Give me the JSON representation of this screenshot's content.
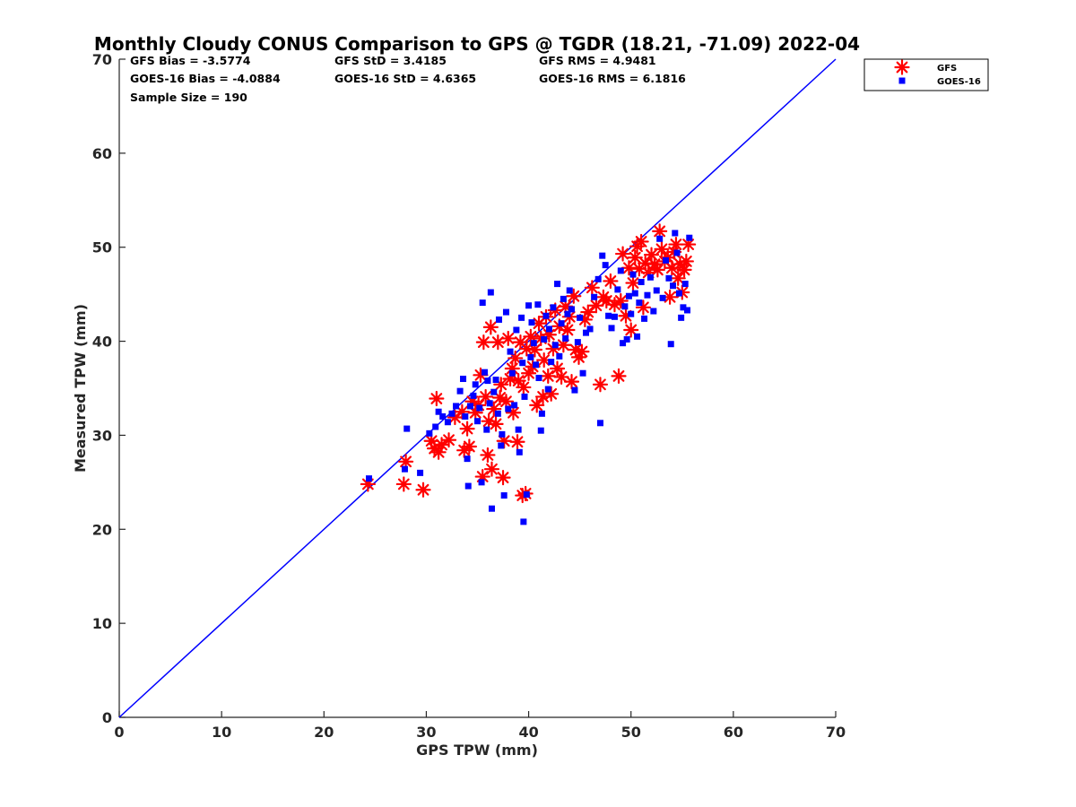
{
  "chart_data": {
    "type": "scatter",
    "title": "Monthly Cloudy CONUS Comparison to GPS @ TGDR (18.21, -71.09) 2022-04",
    "xlabel": "GPS TPW (mm)",
    "ylabel": "Measured TPW (mm)",
    "xlim": [
      0,
      70
    ],
    "ylim": [
      0,
      70
    ],
    "xticks": [
      "0",
      "10",
      "20",
      "30",
      "40",
      "50",
      "60",
      "70"
    ],
    "yticks": [
      "0",
      "10",
      "20",
      "30",
      "40",
      "50",
      "60",
      "70"
    ],
    "grid": false,
    "legend_position": "top-right outside",
    "stats": {
      "gfs_bias": "GFS Bias = -3.5774",
      "goes_bias": "GOES-16 Bias = -4.0884",
      "sample_size": "Sample Size = 190",
      "gfs_std": "GFS StD = 3.4185",
      "goes_std": "GOES-16 StD = 4.6365",
      "gfs_rms": "GFS RMS = 4.9481",
      "goes_rms": "GOES-16 RMS = 6.1816"
    },
    "reference_line": {
      "from": [
        0,
        0
      ],
      "to": [
        70,
        70
      ],
      "color": "#0000ff"
    },
    "series": [
      {
        "name": "GFS",
        "marker": "asterisk",
        "color": "#ff0000",
        "points": [
          [
            24.3,
            24.8
          ],
          [
            27.8,
            24.8
          ],
          [
            28.0,
            27.2
          ],
          [
            29.7,
            24.2
          ],
          [
            30.5,
            29.4
          ],
          [
            30.8,
            28.6
          ],
          [
            31.0,
            33.9
          ],
          [
            31.2,
            28.2
          ],
          [
            31.5,
            29.0
          ],
          [
            32.2,
            29.5
          ],
          [
            32.8,
            31.9
          ],
          [
            33.5,
            32.5
          ],
          [
            33.7,
            28.4
          ],
          [
            34.0,
            30.7
          ],
          [
            34.2,
            28.8
          ],
          [
            34.5,
            33.6
          ],
          [
            34.8,
            32.4
          ],
          [
            35.1,
            33.2
          ],
          [
            35.3,
            36.4
          ],
          [
            35.5,
            25.6
          ],
          [
            35.6,
            39.9
          ],
          [
            35.8,
            34.1
          ],
          [
            36.0,
            27.9
          ],
          [
            36.1,
            31.5
          ],
          [
            36.3,
            41.5
          ],
          [
            36.4,
            26.4
          ],
          [
            36.6,
            32.8
          ],
          [
            36.8,
            31.2
          ],
          [
            37.0,
            39.9
          ],
          [
            37.2,
            34.0
          ],
          [
            37.3,
            35.4
          ],
          [
            37.5,
            25.5
          ],
          [
            37.6,
            29.4
          ],
          [
            37.8,
            33.6
          ],
          [
            38.0,
            40.3
          ],
          [
            38.2,
            36.0
          ],
          [
            38.4,
            37.1
          ],
          [
            38.5,
            32.4
          ],
          [
            38.7,
            38.2
          ],
          [
            38.9,
            29.3
          ],
          [
            39.0,
            35.8
          ],
          [
            39.2,
            39.9
          ],
          [
            39.4,
            23.6
          ],
          [
            39.5,
            35.1
          ],
          [
            39.7,
            23.8
          ],
          [
            39.8,
            39.2
          ],
          [
            40.0,
            36.6
          ],
          [
            40.2,
            40.5
          ],
          [
            40.4,
            37.3
          ],
          [
            40.6,
            39.1
          ],
          [
            40.8,
            33.2
          ],
          [
            41.0,
            41.9
          ],
          [
            41.2,
            40.3
          ],
          [
            41.4,
            34.1
          ],
          [
            41.5,
            38.0
          ],
          [
            41.7,
            42.6
          ],
          [
            41.9,
            36.3
          ],
          [
            42.0,
            40.7
          ],
          [
            42.2,
            34.4
          ],
          [
            42.4,
            39.2
          ],
          [
            42.6,
            43.3
          ],
          [
            42.8,
            37.1
          ],
          [
            43.0,
            41.6
          ],
          [
            43.2,
            36.2
          ],
          [
            43.4,
            39.6
          ],
          [
            43.6,
            43.7
          ],
          [
            43.8,
            41.2
          ],
          [
            44.0,
            42.6
          ],
          [
            44.2,
            35.7
          ],
          [
            44.4,
            44.8
          ],
          [
            44.6,
            39.1
          ],
          [
            44.9,
            38.3
          ],
          [
            45.2,
            38.9
          ],
          [
            45.5,
            42.3
          ],
          [
            45.8,
            43.1
          ],
          [
            46.2,
            45.7
          ],
          [
            46.6,
            43.8
          ],
          [
            47.0,
            35.4
          ],
          [
            47.3,
            44.7
          ],
          [
            47.6,
            44.3
          ],
          [
            48.0,
            46.4
          ],
          [
            48.4,
            43.9
          ],
          [
            48.8,
            36.3
          ],
          [
            49.0,
            44.3
          ],
          [
            49.2,
            49.3
          ],
          [
            49.5,
            42.7
          ],
          [
            49.8,
            47.8
          ],
          [
            50.0,
            41.2
          ],
          [
            50.2,
            46.2
          ],
          [
            50.4,
            48.9
          ],
          [
            50.6,
            50.1
          ],
          [
            50.8,
            47.7
          ],
          [
            51.0,
            50.6
          ],
          [
            51.2,
            43.6
          ],
          [
            51.4,
            48.3
          ],
          [
            51.7,
            47.3
          ],
          [
            52.0,
            49.2
          ],
          [
            52.3,
            48.2
          ],
          [
            52.6,
            47.6
          ],
          [
            52.8,
            51.7
          ],
          [
            53.0,
            49.8
          ],
          [
            53.3,
            48.5
          ],
          [
            53.6,
            48.9
          ],
          [
            53.8,
            44.7
          ],
          [
            54.0,
            47.8
          ],
          [
            54.2,
            49.5
          ],
          [
            54.4,
            50.3
          ],
          [
            54.6,
            46.7
          ],
          [
            54.8,
            48.2
          ],
          [
            55.0,
            45.2
          ],
          [
            55.2,
            47.6
          ],
          [
            55.4,
            48.5
          ],
          [
            55.6,
            50.3
          ]
        ]
      },
      {
        "name": "GOES-16",
        "marker": "square",
        "color": "#0000ff",
        "points": [
          [
            24.4,
            25.4
          ],
          [
            27.9,
            26.4
          ],
          [
            28.1,
            30.7
          ],
          [
            29.4,
            26.0
          ],
          [
            30.3,
            30.2
          ],
          [
            30.9,
            30.9
          ],
          [
            31.2,
            32.5
          ],
          [
            31.6,
            32.0
          ],
          [
            32.1,
            31.4
          ],
          [
            32.5,
            32.3
          ],
          [
            32.9,
            33.1
          ],
          [
            33.3,
            34.7
          ],
          [
            33.6,
            36.0
          ],
          [
            33.8,
            32.0
          ],
          [
            34.0,
            27.5
          ],
          [
            34.1,
            24.6
          ],
          [
            34.3,
            33.1
          ],
          [
            34.6,
            34.2
          ],
          [
            34.8,
            35.4
          ],
          [
            35.0,
            31.5
          ],
          [
            35.2,
            32.9
          ],
          [
            35.4,
            25.0
          ],
          [
            35.5,
            44.1
          ],
          [
            35.7,
            36.7
          ],
          [
            35.9,
            30.6
          ],
          [
            36.0,
            35.8
          ],
          [
            36.2,
            33.4
          ],
          [
            36.3,
            45.2
          ],
          [
            36.4,
            22.2
          ],
          [
            36.6,
            34.6
          ],
          [
            36.8,
            35.9
          ],
          [
            37.0,
            32.3
          ],
          [
            37.1,
            42.3
          ],
          [
            37.3,
            28.9
          ],
          [
            37.4,
            30.1
          ],
          [
            37.6,
            23.6
          ],
          [
            37.8,
            43.1
          ],
          [
            38.0,
            32.8
          ],
          [
            38.2,
            38.9
          ],
          [
            38.4,
            36.6
          ],
          [
            38.6,
            33.2
          ],
          [
            38.8,
            41.2
          ],
          [
            39.0,
            30.6
          ],
          [
            39.1,
            28.2
          ],
          [
            39.3,
            42.5
          ],
          [
            39.4,
            37.7
          ],
          [
            39.5,
            20.8
          ],
          [
            39.6,
            34.1
          ],
          [
            39.8,
            23.7
          ],
          [
            40.0,
            43.8
          ],
          [
            40.2,
            38.3
          ],
          [
            40.3,
            42.0
          ],
          [
            40.5,
            39.8
          ],
          [
            40.7,
            37.5
          ],
          [
            40.9,
            43.9
          ],
          [
            41.0,
            36.1
          ],
          [
            41.2,
            30.5
          ],
          [
            41.3,
            32.3
          ],
          [
            41.5,
            40.2
          ],
          [
            41.7,
            42.7
          ],
          [
            41.9,
            34.9
          ],
          [
            42.0,
            41.3
          ],
          [
            42.2,
            37.8
          ],
          [
            42.4,
            43.6
          ],
          [
            42.6,
            39.6
          ],
          [
            42.8,
            46.1
          ],
          [
            43.0,
            38.4
          ],
          [
            43.2,
            41.9
          ],
          [
            43.4,
            44.5
          ],
          [
            43.6,
            40.3
          ],
          [
            43.8,
            42.9
          ],
          [
            44.0,
            45.4
          ],
          [
            44.2,
            43.4
          ],
          [
            44.5,
            34.8
          ],
          [
            44.8,
            39.9
          ],
          [
            45.0,
            42.5
          ],
          [
            45.3,
            36.6
          ],
          [
            45.6,
            40.9
          ],
          [
            46.0,
            41.3
          ],
          [
            46.4,
            44.7
          ],
          [
            46.8,
            46.6
          ],
          [
            47.0,
            31.3
          ],
          [
            47.2,
            49.1
          ],
          [
            47.5,
            48.1
          ],
          [
            47.8,
            42.7
          ],
          [
            48.1,
            41.4
          ],
          [
            48.4,
            42.6
          ],
          [
            48.7,
            45.5
          ],
          [
            49.0,
            47.5
          ],
          [
            49.2,
            39.8
          ],
          [
            49.4,
            43.7
          ],
          [
            49.6,
            40.2
          ],
          [
            49.8,
            44.8
          ],
          [
            50.0,
            42.9
          ],
          [
            50.2,
            47.1
          ],
          [
            50.4,
            45.1
          ],
          [
            50.6,
            40.5
          ],
          [
            50.8,
            44.1
          ],
          [
            51.0,
            46.3
          ],
          [
            51.3,
            42.4
          ],
          [
            51.6,
            44.9
          ],
          [
            51.9,
            46.8
          ],
          [
            52.2,
            43.2
          ],
          [
            52.5,
            45.4
          ],
          [
            52.8,
            50.9
          ],
          [
            53.1,
            44.6
          ],
          [
            53.4,
            48.6
          ],
          [
            53.7,
            46.7
          ],
          [
            53.9,
            39.7
          ],
          [
            54.1,
            45.9
          ],
          [
            54.3,
            51.5
          ],
          [
            54.5,
            49.4
          ],
          [
            54.7,
            45.1
          ],
          [
            54.9,
            42.5
          ],
          [
            55.1,
            43.6
          ],
          [
            55.3,
            46.1
          ],
          [
            55.5,
            43.3
          ],
          [
            55.7,
            51.0
          ]
        ]
      }
    ]
  }
}
